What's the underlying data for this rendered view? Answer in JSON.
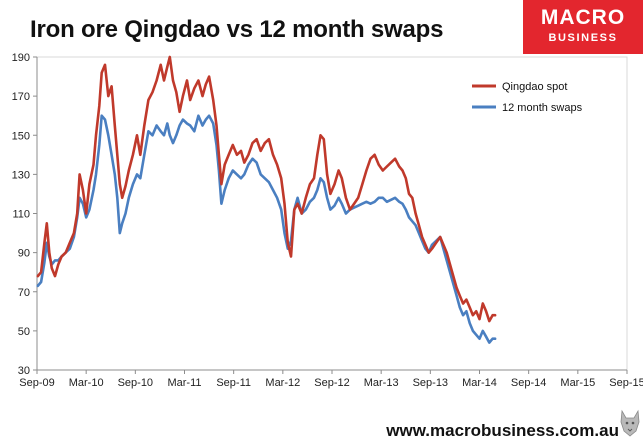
{
  "header": {
    "title": "Iron ore Qingdao vs 12 month swaps"
  },
  "logo": {
    "line1": "MACRO",
    "line2": "BUSINESS"
  },
  "footer": {
    "url": "www.macrobusiness.com.au"
  },
  "colors": {
    "qingdao": "#c0392b",
    "swaps": "#4a7fc1",
    "brand": "#e3262e"
  },
  "chart_data": {
    "type": "line",
    "title": "Iron ore Qingdao vs 12 month swaps",
    "xlabel": "",
    "ylabel": "",
    "x_tick_labels": [
      "Sep-09",
      "Mar-10",
      "Sep-10",
      "Mar-11",
      "Sep-11",
      "Mar-12",
      "Sep-12",
      "Mar-13",
      "Sep-13",
      "Mar-14",
      "Sep-14",
      "Mar-15",
      "Sep-15"
    ],
    "y_ticks": [
      30,
      50,
      70,
      90,
      110,
      130,
      150,
      170,
      190
    ],
    "ylim": [
      30,
      190
    ],
    "grid": false,
    "legend_position": "top-right",
    "x_unit": "months since Sep-09",
    "series": [
      {
        "name": "Qingdao spot",
        "color": "#c0392b",
        "points": [
          [
            0.1,
            78
          ],
          [
            0.5,
            80
          ],
          [
            0.9,
            95
          ],
          [
            1.2,
            105
          ],
          [
            1.5,
            90
          ],
          [
            1.8,
            82
          ],
          [
            2.2,
            78
          ],
          [
            2.6,
            84
          ],
          [
            3.0,
            88
          ],
          [
            3.5,
            90
          ],
          [
            4.0,
            95
          ],
          [
            4.5,
            100
          ],
          [
            4.9,
            110
          ],
          [
            5.2,
            130
          ],
          [
            5.6,
            122
          ],
          [
            6.0,
            110
          ],
          [
            6.4,
            125
          ],
          [
            6.9,
            135
          ],
          [
            7.2,
            150
          ],
          [
            7.6,
            165
          ],
          [
            7.9,
            182
          ],
          [
            8.3,
            186
          ],
          [
            8.7,
            170
          ],
          [
            9.1,
            175
          ],
          [
            9.5,
            155
          ],
          [
            9.8,
            140
          ],
          [
            10.1,
            125
          ],
          [
            10.4,
            118
          ],
          [
            10.8,
            124
          ],
          [
            11.2,
            132
          ],
          [
            11.7,
            140
          ],
          [
            12.2,
            150
          ],
          [
            12.6,
            140
          ],
          [
            13.1,
            155
          ],
          [
            13.6,
            168
          ],
          [
            14.1,
            172
          ],
          [
            14.6,
            178
          ],
          [
            15.1,
            186
          ],
          [
            15.5,
            178
          ],
          [
            15.9,
            185
          ],
          [
            16.2,
            190
          ],
          [
            16.6,
            178
          ],
          [
            17.0,
            172
          ],
          [
            17.4,
            162
          ],
          [
            17.8,
            170
          ],
          [
            18.3,
            178
          ],
          [
            18.7,
            168
          ],
          [
            19.2,
            174
          ],
          [
            19.7,
            178
          ],
          [
            20.2,
            170
          ],
          [
            20.6,
            176
          ],
          [
            21.0,
            180
          ],
          [
            21.5,
            168
          ],
          [
            21.9,
            155
          ],
          [
            22.2,
            140
          ],
          [
            22.5,
            125
          ],
          [
            22.9,
            135
          ],
          [
            23.4,
            140
          ],
          [
            23.9,
            145
          ],
          [
            24.4,
            140
          ],
          [
            24.9,
            142
          ],
          [
            25.3,
            136
          ],
          [
            25.8,
            140
          ],
          [
            26.3,
            146
          ],
          [
            26.8,
            148
          ],
          [
            27.3,
            142
          ],
          [
            27.8,
            146
          ],
          [
            28.3,
            148
          ],
          [
            28.8,
            140
          ],
          [
            29.3,
            135
          ],
          [
            29.8,
            128
          ],
          [
            30.2,
            115
          ],
          [
            30.6,
            95
          ],
          [
            31.0,
            88
          ],
          [
            31.4,
            112
          ],
          [
            31.8,
            115
          ],
          [
            32.3,
            110
          ],
          [
            32.8,
            118
          ],
          [
            33.3,
            125
          ],
          [
            33.8,
            128
          ],
          [
            34.2,
            140
          ],
          [
            34.6,
            150
          ],
          [
            35.0,
            148
          ],
          [
            35.4,
            130
          ],
          [
            35.8,
            120
          ],
          [
            36.3,
            125
          ],
          [
            36.8,
            132
          ],
          [
            37.2,
            128
          ],
          [
            37.7,
            118
          ],
          [
            38.2,
            112
          ],
          [
            38.7,
            115
          ],
          [
            39.2,
            118
          ],
          [
            39.7,
            125
          ],
          [
            40.2,
            132
          ],
          [
            40.7,
            138
          ],
          [
            41.2,
            140
          ],
          [
            41.7,
            135
          ],
          [
            42.2,
            132
          ],
          [
            42.7,
            134
          ],
          [
            43.2,
            136
          ],
          [
            43.7,
            138
          ],
          [
            44.2,
            134
          ],
          [
            44.6,
            132
          ],
          [
            45.0,
            128
          ],
          [
            45.4,
            120
          ],
          [
            45.8,
            118
          ],
          [
            46.2,
            110
          ],
          [
            46.6,
            104
          ],
          [
            47.0,
            98
          ],
          [
            47.4,
            94
          ],
          [
            47.8,
            90
          ],
          [
            48.2,
            92
          ],
          [
            48.7,
            95
          ],
          [
            49.2,
            98
          ],
          [
            49.6,
            94
          ],
          [
            50.0,
            90
          ],
          [
            50.4,
            84
          ],
          [
            50.8,
            78
          ],
          [
            51.2,
            72
          ],
          [
            51.6,
            68
          ],
          [
            52.0,
            64
          ],
          [
            52.4,
            66
          ],
          [
            52.8,
            62
          ],
          [
            53.2,
            58
          ],
          [
            53.6,
            60
          ],
          [
            54.0,
            56
          ],
          [
            54.4,
            64
          ],
          [
            54.8,
            60
          ],
          [
            55.2,
            55
          ],
          [
            55.6,
            58
          ],
          [
            55.9,
            58
          ]
        ]
      },
      {
        "name": "12 month swaps",
        "color": "#4a7fc1",
        "points": [
          [
            0.1,
            73
          ],
          [
            0.5,
            75
          ],
          [
            0.9,
            85
          ],
          [
            1.2,
            95
          ],
          [
            1.5,
            88
          ],
          [
            1.8,
            84
          ],
          [
            2.2,
            86
          ],
          [
            2.6,
            86
          ],
          [
            3.0,
            88
          ],
          [
            3.5,
            90
          ],
          [
            4.0,
            92
          ],
          [
            4.5,
            98
          ],
          [
            4.9,
            108
          ],
          [
            5.2,
            118
          ],
          [
            5.6,
            115
          ],
          [
            6.0,
            108
          ],
          [
            6.4,
            112
          ],
          [
            6.9,
            122
          ],
          [
            7.2,
            130
          ],
          [
            7.6,
            145
          ],
          [
            7.9,
            160
          ],
          [
            8.3,
            158
          ],
          [
            8.7,
            150
          ],
          [
            9.1,
            140
          ],
          [
            9.5,
            130
          ],
          [
            9.8,
            118
          ],
          [
            10.1,
            100
          ],
          [
            10.4,
            105
          ],
          [
            10.8,
            110
          ],
          [
            11.2,
            118
          ],
          [
            11.7,
            125
          ],
          [
            12.2,
            130
          ],
          [
            12.6,
            128
          ],
          [
            13.1,
            140
          ],
          [
            13.6,
            152
          ],
          [
            14.1,
            150
          ],
          [
            14.6,
            155
          ],
          [
            15.1,
            152
          ],
          [
            15.5,
            150
          ],
          [
            15.9,
            156
          ],
          [
            16.2,
            150
          ],
          [
            16.6,
            146
          ],
          [
            17.0,
            150
          ],
          [
            17.4,
            155
          ],
          [
            17.8,
            158
          ],
          [
            18.3,
            156
          ],
          [
            18.7,
            155
          ],
          [
            19.2,
            152
          ],
          [
            19.7,
            160
          ],
          [
            20.2,
            155
          ],
          [
            20.6,
            158
          ],
          [
            21.0,
            160
          ],
          [
            21.5,
            156
          ],
          [
            21.9,
            145
          ],
          [
            22.2,
            132
          ],
          [
            22.5,
            115
          ],
          [
            22.9,
            122
          ],
          [
            23.4,
            128
          ],
          [
            23.9,
            132
          ],
          [
            24.4,
            130
          ],
          [
            24.9,
            128
          ],
          [
            25.3,
            130
          ],
          [
            25.8,
            135
          ],
          [
            26.3,
            138
          ],
          [
            26.8,
            136
          ],
          [
            27.3,
            130
          ],
          [
            27.8,
            128
          ],
          [
            28.3,
            126
          ],
          [
            28.8,
            122
          ],
          [
            29.3,
            118
          ],
          [
            29.8,
            112
          ],
          [
            30.2,
            100
          ],
          [
            30.6,
            92
          ],
          [
            31.0,
            96
          ],
          [
            31.4,
            112
          ],
          [
            31.8,
            118
          ],
          [
            32.3,
            110
          ],
          [
            32.8,
            112
          ],
          [
            33.3,
            116
          ],
          [
            33.8,
            118
          ],
          [
            34.2,
            122
          ],
          [
            34.6,
            128
          ],
          [
            35.0,
            126
          ],
          [
            35.4,
            118
          ],
          [
            35.8,
            112
          ],
          [
            36.3,
            114
          ],
          [
            36.8,
            118
          ],
          [
            37.2,
            115
          ],
          [
            37.7,
            110
          ],
          [
            38.2,
            112
          ],
          [
            38.7,
            113
          ],
          [
            39.2,
            114
          ],
          [
            39.7,
            115
          ],
          [
            40.2,
            116
          ],
          [
            40.7,
            115
          ],
          [
            41.2,
            116
          ],
          [
            41.7,
            118
          ],
          [
            42.2,
            118
          ],
          [
            42.7,
            116
          ],
          [
            43.2,
            117
          ],
          [
            43.7,
            118
          ],
          [
            44.2,
            116
          ],
          [
            44.6,
            115
          ],
          [
            45.0,
            112
          ],
          [
            45.4,
            108
          ],
          [
            45.8,
            106
          ],
          [
            46.2,
            104
          ],
          [
            46.6,
            100
          ],
          [
            47.0,
            96
          ],
          [
            47.4,
            92
          ],
          [
            47.8,
            90
          ],
          [
            48.2,
            94
          ],
          [
            48.7,
            96
          ],
          [
            49.2,
            98
          ],
          [
            49.6,
            92
          ],
          [
            50.0,
            86
          ],
          [
            50.4,
            80
          ],
          [
            50.8,
            74
          ],
          [
            51.2,
            68
          ],
          [
            51.6,
            62
          ],
          [
            52.0,
            58
          ],
          [
            52.4,
            60
          ],
          [
            52.8,
            54
          ],
          [
            53.2,
            50
          ],
          [
            53.6,
            48
          ],
          [
            54.0,
            46
          ],
          [
            54.4,
            50
          ],
          [
            54.8,
            47
          ],
          [
            55.2,
            44
          ],
          [
            55.6,
            46
          ],
          [
            55.9,
            46
          ]
        ]
      }
    ]
  }
}
